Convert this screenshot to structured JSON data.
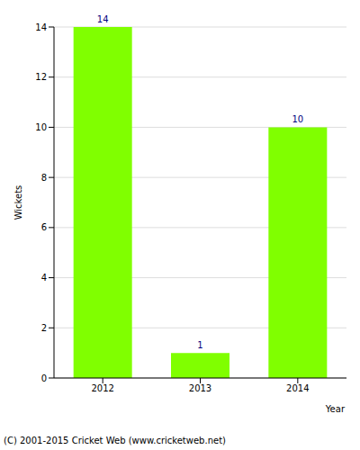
{
  "chart_data": {
    "type": "bar",
    "categories": [
      "2012",
      "2013",
      "2014"
    ],
    "values": [
      14,
      1,
      10
    ],
    "color": "#80ff00",
    "ylim": [
      0,
      14
    ],
    "yticks": [
      0,
      2,
      4,
      6,
      8,
      10,
      12,
      14
    ],
    "grid": true,
    "data_labels": true,
    "ylabel": "Wickets",
    "xlabel": "Year",
    "annotations": [
      "(C) 2001-2015 Cricket Web (www.cricketweb.net)"
    ]
  }
}
